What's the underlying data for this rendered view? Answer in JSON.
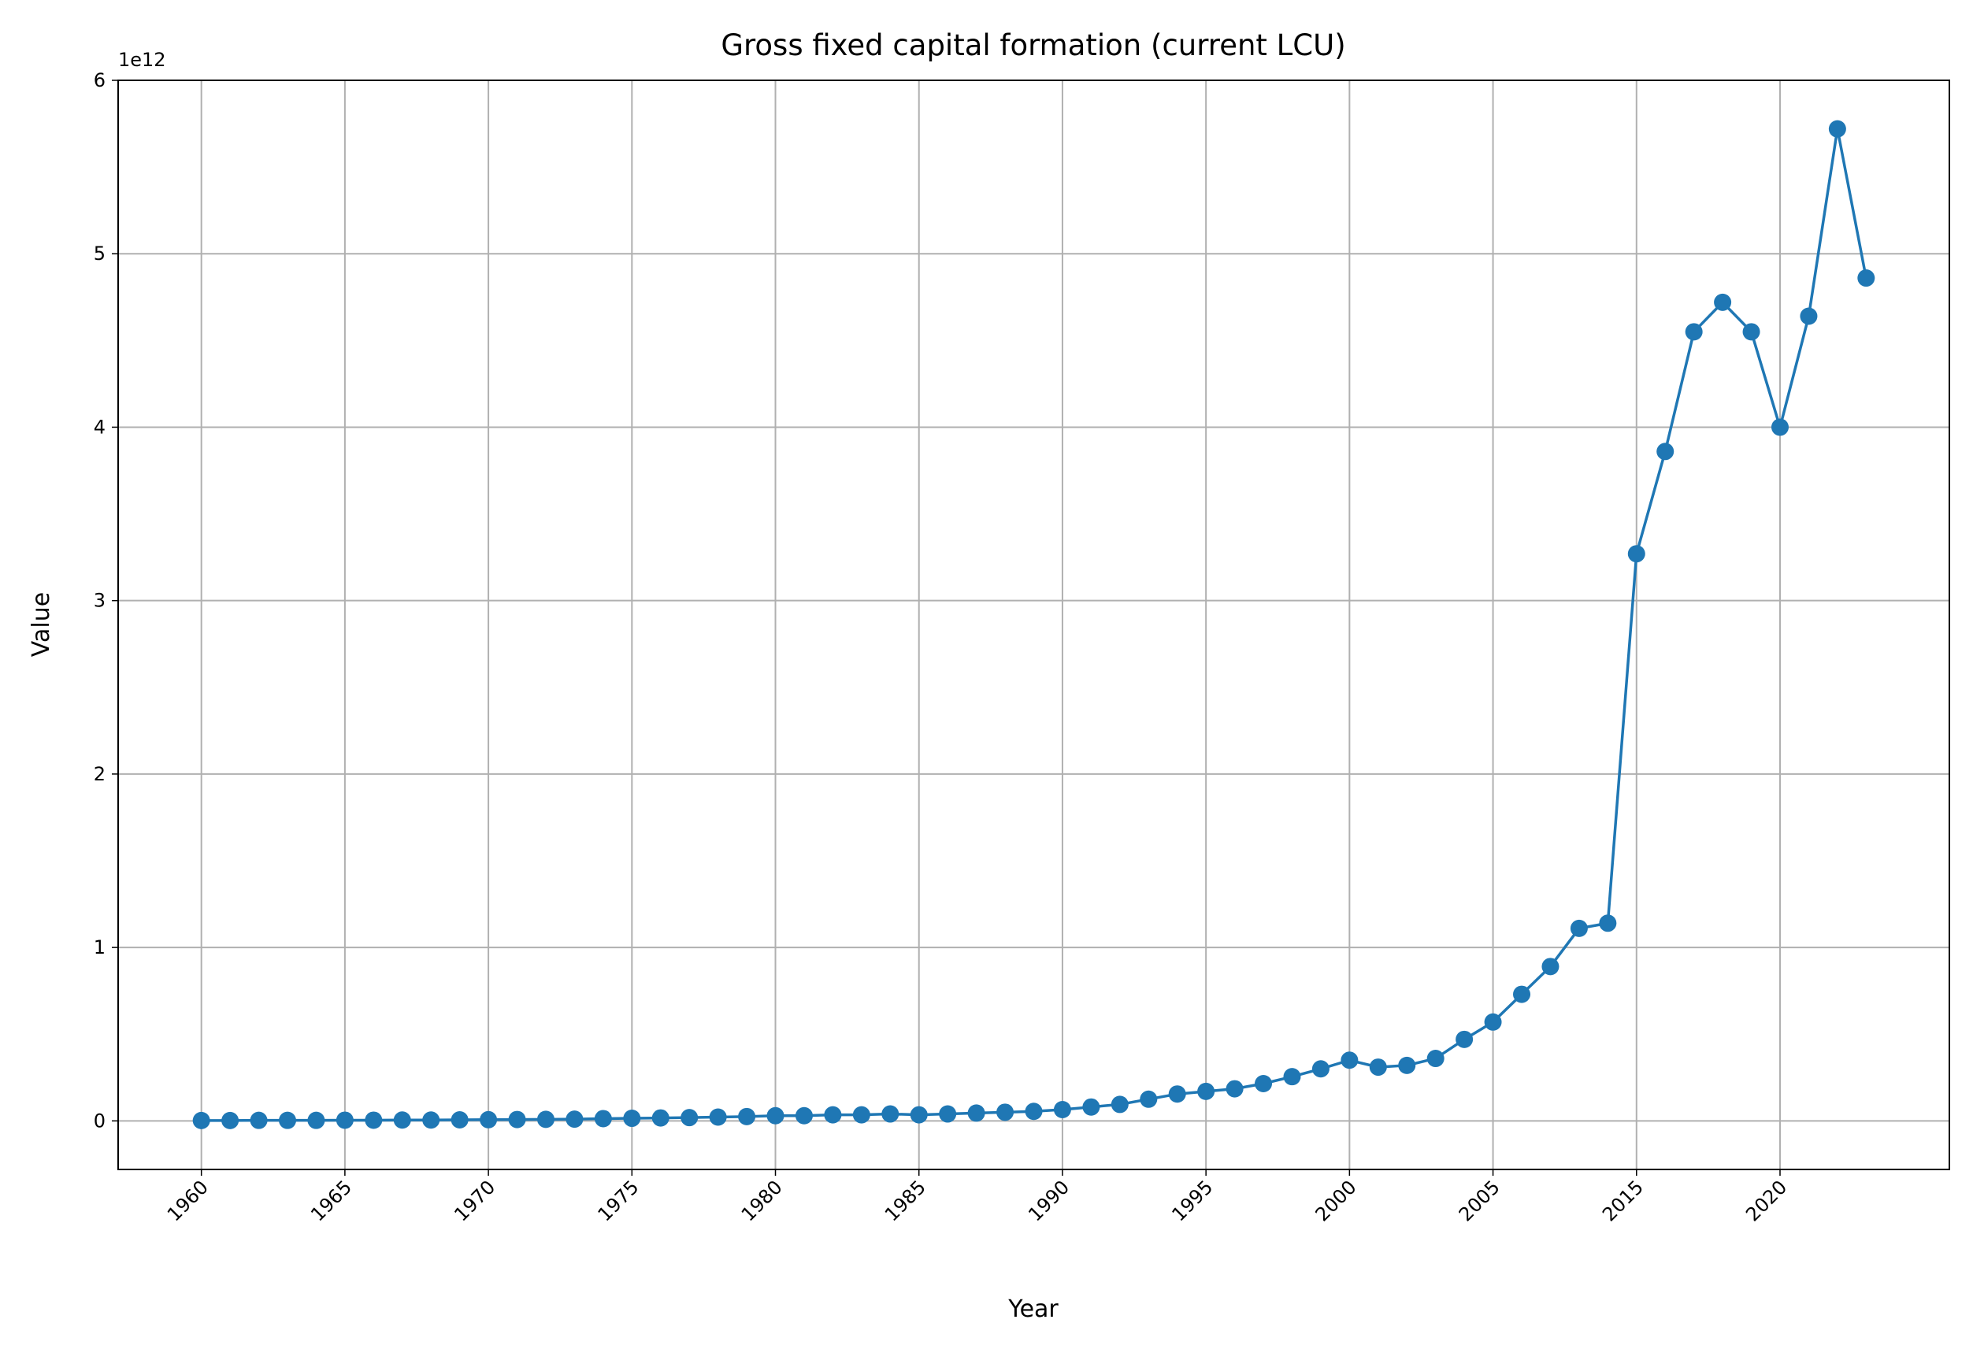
{
  "chart_data": {
    "type": "line",
    "title": "Gross fixed capital formation (current LCU)",
    "xlabel": "Year",
    "ylabel": "Value",
    "y_offset_label": "1e12",
    "categories": [
      "1960",
      null,
      null,
      null,
      null,
      "1965",
      null,
      null,
      null,
      null,
      "1970",
      null,
      null,
      null,
      null,
      "1975",
      null,
      null,
      null,
      null,
      "1980",
      null,
      null,
      null,
      null,
      "1985",
      null,
      null,
      null,
      null,
      "1990",
      null,
      null,
      null,
      null,
      "1995",
      null,
      null,
      null,
      null,
      "2000",
      null,
      null,
      null,
      null,
      "2005",
      null,
      null,
      null,
      null,
      "2015",
      null,
      null,
      null,
      null,
      "2020",
      null,
      null,
      null
    ],
    "series": [
      {
        "name": "Gross fixed capital formation (current LCU)",
        "color": "#1f77b4",
        "values": [
          0.002,
          0.002,
          0.003,
          0.003,
          0.003,
          0.004,
          0.004,
          0.005,
          0.005,
          0.006,
          0.007,
          0.008,
          0.009,
          0.01,
          0.013,
          0.015,
          0.017,
          0.019,
          0.022,
          0.025,
          0.03,
          0.03,
          0.035,
          0.035,
          0.04,
          0.035,
          0.04,
          0.045,
          0.05,
          0.055,
          0.065,
          0.08,
          0.095,
          0.125,
          0.155,
          0.17,
          0.185,
          0.215,
          0.255,
          0.3,
          0.35,
          0.31,
          0.32,
          0.36,
          0.47,
          0.57,
          0.73,
          0.89,
          1.11,
          1.14,
          3.27,
          3.86,
          4.55,
          4.72,
          4.55,
          4.0,
          4.64,
          5.72,
          4.86
        ]
      }
    ],
    "ylim": [
      -0.28,
      6
    ],
    "yticks": [
      0,
      1,
      2,
      3,
      4,
      5,
      6
    ],
    "grid": true
  }
}
